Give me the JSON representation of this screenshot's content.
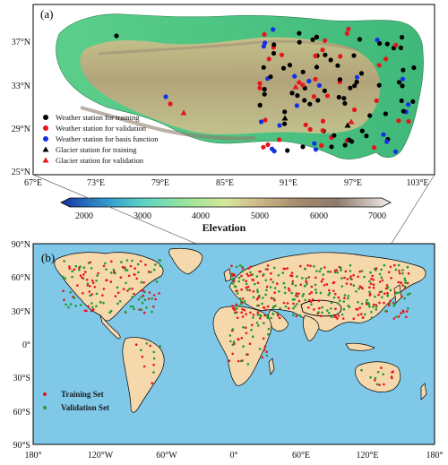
{
  "panel_a": {
    "label": "(a)",
    "lon_ticks": [
      "67°E",
      "73°E",
      "79°E",
      "85°E",
      "91°E",
      "97°E",
      "103°E"
    ],
    "lat_ticks": [
      "37°N",
      "33°N",
      "29°N",
      "25°N"
    ],
    "legend": [
      {
        "label": "Weather station for training",
        "marker": "circle",
        "color": "#000000"
      },
      {
        "label": "Weather station for validation",
        "marker": "circle",
        "color": "#e8141b"
      },
      {
        "label": "Weather station for basis function",
        "marker": "circle",
        "color": "#1430e6"
      },
      {
        "label": "Glacier station for training",
        "marker": "triangle",
        "color": "#000000"
      },
      {
        "label": "Glacier station for validation",
        "marker": "triangle",
        "color": "#e8141b"
      }
    ]
  },
  "colorbar": {
    "title": "Elevation",
    "ticks": [
      "2000",
      "3000",
      "4000",
      "5000",
      "6000",
      "7000"
    ],
    "colors": [
      "#1a2f9c",
      "#2a8fd0",
      "#5dd3c5",
      "#9be59a",
      "#d6e79a",
      "#cdb98a",
      "#a48a6b",
      "#8f7b6d",
      "#c7bcb4",
      "#f4f1ee"
    ]
  },
  "panel_b": {
    "label": "(b)",
    "lat_ticks": [
      "90°N",
      "60°N",
      "30°N",
      "0°",
      "30°S",
      "60°S",
      "90°S"
    ],
    "lon_ticks": [
      "180°",
      "120°W",
      "60°W",
      "0°",
      "60°E",
      "120°E",
      "180°"
    ],
    "ocean_color": "#7fc8e8",
    "land_color": "#f5d9ad",
    "legend": [
      {
        "label": "Training Set",
        "color": "#e8141b"
      },
      {
        "label": "Validation Set",
        "color": "#1f9a2e"
      }
    ]
  }
}
